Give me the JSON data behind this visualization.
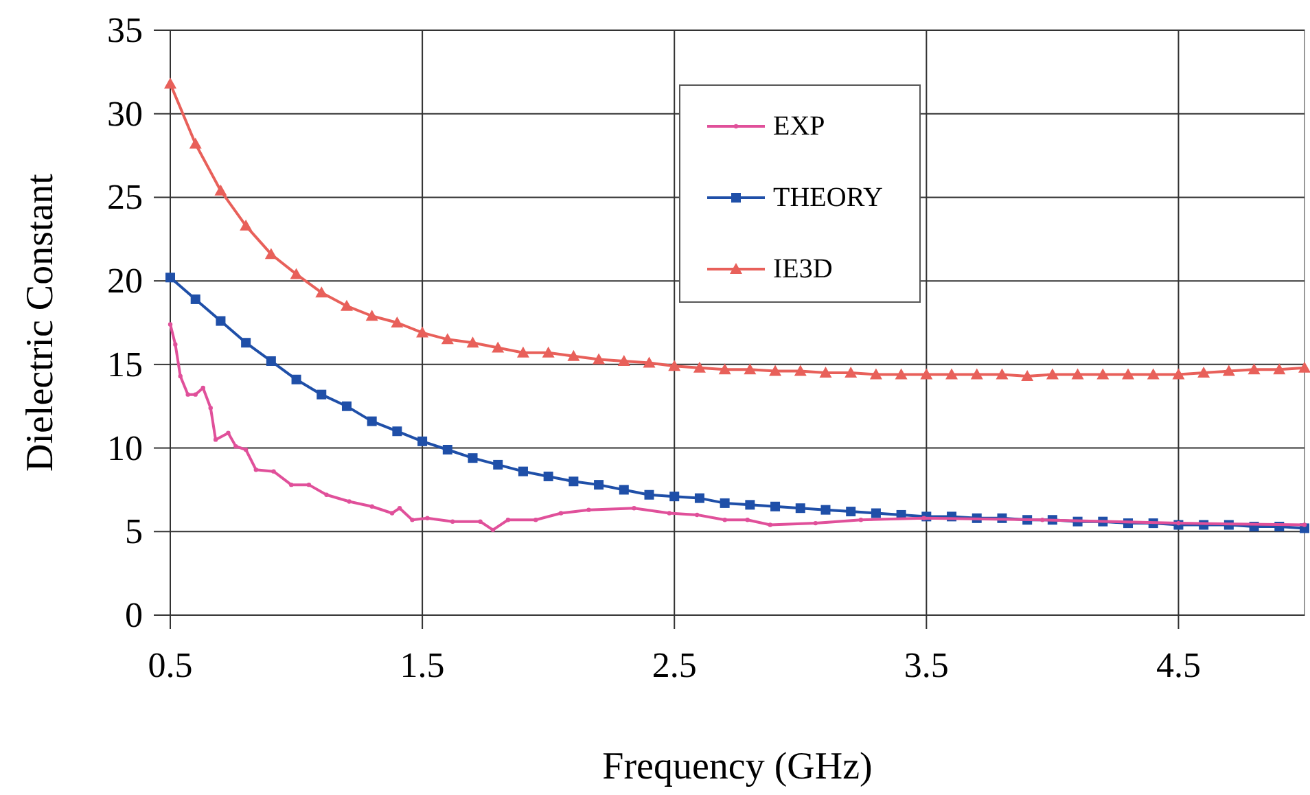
{
  "chart_data": {
    "type": "line",
    "xlabel": "Frequency (GHz)",
    "ylabel": "Dielectric Constant",
    "xlim": [
      0.5,
      5
    ],
    "xticks": [
      0.5,
      1.5,
      2.5,
      3.5,
      4.5
    ],
    "ylim": [
      0,
      35
    ],
    "yticks": [
      0,
      5,
      10,
      15,
      20,
      25,
      30,
      35
    ],
    "grid": true,
    "legend": "top",
    "line_style": "solid",
    "series": [
      {
        "name": "EXP",
        "color": "#e0509a",
        "marker": "circle",
        "x": [
          0.5,
          0.52,
          0.54,
          0.57,
          0.6,
          0.63,
          0.66,
          0.68,
          0.73,
          0.76,
          0.8,
          0.84,
          0.91,
          0.98,
          1.05,
          1.12,
          1.21,
          1.3,
          1.38,
          1.41,
          1.46,
          1.52,
          1.62,
          1.73,
          1.78,
          1.84,
          1.95,
          2.05,
          2.16,
          2.34,
          2.48,
          2.59,
          2.7,
          2.79,
          2.88,
          3.06,
          3.24,
          3.49,
          3.96,
          4.5,
          5.0
        ],
        "values": [
          17.4,
          16.2,
          14.3,
          13.2,
          13.2,
          13.6,
          12.4,
          10.5,
          10.9,
          10.1,
          9.9,
          8.7,
          8.6,
          7.8,
          7.8,
          7.2,
          6.8,
          6.5,
          6.1,
          6.4,
          5.7,
          5.8,
          5.6,
          5.6,
          5.1,
          5.7,
          5.7,
          6.1,
          6.3,
          6.4,
          6.1,
          6.0,
          5.7,
          5.7,
          5.4,
          5.5,
          5.7,
          5.8,
          5.7,
          5.5,
          5.4
        ]
      },
      {
        "name": "THEORY",
        "color": "#1f4fa8",
        "marker": "square",
        "x": [
          0.5,
          0.6,
          0.7,
          0.8,
          0.9,
          1.0,
          1.1,
          1.2,
          1.3,
          1.4,
          1.5,
          1.6,
          1.7,
          1.8,
          1.9,
          2.0,
          2.1,
          2.2,
          2.3,
          2.4,
          2.5,
          2.6,
          2.7,
          2.8,
          2.9,
          3.0,
          3.1,
          3.2,
          3.3,
          3.4,
          3.5,
          3.6,
          3.7,
          3.8,
          3.9,
          4.0,
          4.1,
          4.2,
          4.3,
          4.4,
          4.5,
          4.6,
          4.7,
          4.8,
          4.9,
          5.0
        ],
        "values": [
          20.2,
          18.9,
          17.6,
          16.3,
          15.2,
          14.1,
          13.2,
          12.5,
          11.6,
          11.0,
          10.4,
          9.9,
          9.4,
          9.0,
          8.6,
          8.3,
          8.0,
          7.8,
          7.5,
          7.2,
          7.1,
          7.0,
          6.7,
          6.6,
          6.5,
          6.4,
          6.3,
          6.2,
          6.1,
          6.0,
          5.9,
          5.9,
          5.8,
          5.8,
          5.7,
          5.7,
          5.6,
          5.6,
          5.5,
          5.5,
          5.4,
          5.4,
          5.4,
          5.3,
          5.3,
          5.2
        ]
      },
      {
        "name": "IE3D",
        "color": "#e8605a",
        "marker": "triangle",
        "x": [
          0.5,
          0.6,
          0.7,
          0.8,
          0.9,
          1.0,
          1.1,
          1.2,
          1.3,
          1.4,
          1.5,
          1.6,
          1.7,
          1.8,
          1.9,
          2.0,
          2.1,
          2.2,
          2.3,
          2.4,
          2.5,
          2.6,
          2.7,
          2.8,
          2.9,
          3.0,
          3.1,
          3.2,
          3.3,
          3.4,
          3.5,
          3.6,
          3.7,
          3.8,
          3.9,
          4.0,
          4.1,
          4.2,
          4.3,
          4.4,
          4.5,
          4.6,
          4.7,
          4.8,
          4.9,
          5.0
        ],
        "values": [
          31.8,
          28.2,
          25.4,
          23.3,
          21.6,
          20.4,
          19.3,
          18.5,
          17.9,
          17.5,
          16.9,
          16.5,
          16.3,
          16.0,
          15.7,
          15.7,
          15.5,
          15.3,
          15.2,
          15.1,
          14.9,
          14.8,
          14.7,
          14.7,
          14.6,
          14.6,
          14.5,
          14.5,
          14.4,
          14.4,
          14.4,
          14.4,
          14.4,
          14.4,
          14.3,
          14.4,
          14.4,
          14.4,
          14.4,
          14.4,
          14.4,
          14.5,
          14.6,
          14.7,
          14.7,
          14.8
        ]
      }
    ]
  }
}
